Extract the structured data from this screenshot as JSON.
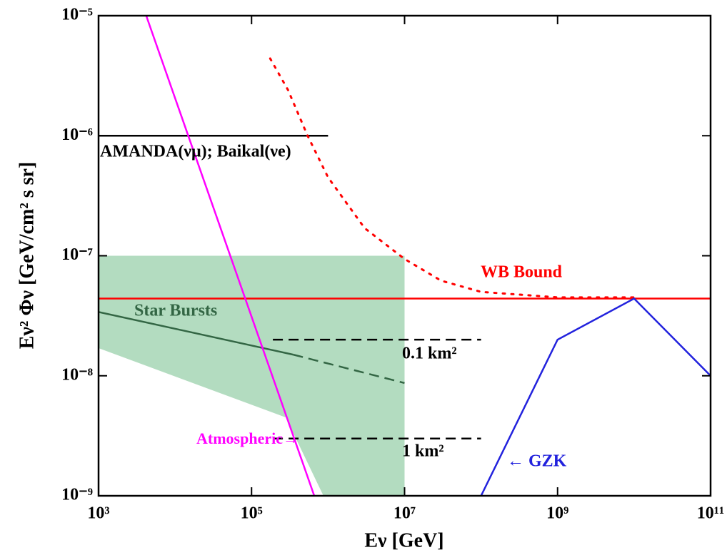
{
  "chart_data": {
    "type": "line",
    "xlabel": "Eν [GeV]",
    "ylabel": "Eν² Φν  [GeV/cm² s sr]",
    "xscale": "log",
    "yscale": "log",
    "xlim": [
      1000,
      100000000000
    ],
    "ylim": [
      1e-09,
      1e-05
    ],
    "xticks": [
      {
        "value": 1000,
        "label": "10³"
      },
      {
        "value": 100000,
        "label": "10⁵"
      },
      {
        "value": 10000000,
        "label": "10⁷"
      },
      {
        "value": 1000000000,
        "label": "10⁹"
      },
      {
        "value": 100000000000,
        "label": "10¹¹"
      }
    ],
    "yticks": [
      {
        "value": 1e-09,
        "label": "10⁻⁹"
      },
      {
        "value": 1e-08,
        "label": "10⁻⁸"
      },
      {
        "value": 1e-07,
        "label": "10⁻⁷"
      },
      {
        "value": 1e-06,
        "label": "10⁻⁶"
      },
      {
        "value": 1e-05,
        "label": "10⁻⁵"
      }
    ],
    "series": [
      {
        "kind": "area",
        "color": "#b3dcc0",
        "x": [
          1000,
          10000000,
          10000000,
          870000,
          280000,
          1000
        ],
        "values": [
          1e-07,
          1e-07,
          1e-09,
          1e-09,
          4.5e-09,
          1.7e-08
        ]
      },
      {
        "name": "Star Bursts",
        "color": "#336644",
        "style": "solid",
        "x": [
          1000,
          350000
        ],
        "values": [
          3.4e-08,
          1.5e-08
        ]
      },
      {
        "color": "#336644",
        "style": "dashed",
        "x": [
          350000,
          10000000
        ],
        "values": [
          1.5e-08,
          8.7e-09
        ]
      },
      {
        "name": "AMANDA(νμ); Baikal(νe)",
        "color": "#000000",
        "style": "solid",
        "x": [
          1000,
          1000000
        ],
        "values": [
          1e-06,
          1e-06
        ]
      },
      {
        "color": "#ff0000",
        "style": "dotted",
        "x": [
          175000,
          300000,
          540000,
          1000000,
          3000000,
          10000000,
          30000000,
          100000000,
          1000000000,
          10000000000
        ],
        "values": [
          4.4e-06,
          2.4e-06,
          1e-06,
          4.5e-07,
          1.7e-07,
          9.4e-08,
          6.2e-08,
          5e-08,
          4.5e-08,
          4.5e-08
        ]
      },
      {
        "name": "WB Bound",
        "color": "#ff0000",
        "style": "solid",
        "x": [
          1000,
          100000000000
        ],
        "values": [
          4.4e-08,
          4.4e-08
        ]
      },
      {
        "name": "0.1 km²",
        "color": "#000000",
        "style": "dashed",
        "x": [
          190000,
          100000000
        ],
        "values": [
          2e-08,
          2e-08
        ]
      },
      {
        "name": "1 km²",
        "color": "#000000",
        "style": "dashed",
        "x": [
          190000,
          100000000
        ],
        "values": [
          3e-09,
          3e-09
        ]
      },
      {
        "name": "← GZK",
        "color": "#2222dd",
        "style": "solid",
        "x": [
          100000000,
          1000000000,
          10000000000,
          100000000000
        ],
        "values": [
          1e-09,
          2e-08,
          4.4e-08,
          1e-08
        ]
      },
      {
        "name": "Atmospheric→",
        "color": "#ff00ff",
        "style": "solid",
        "x": [
          4200,
          660000
        ],
        "values": [
          1e-05,
          1e-09
        ]
      }
    ]
  }
}
